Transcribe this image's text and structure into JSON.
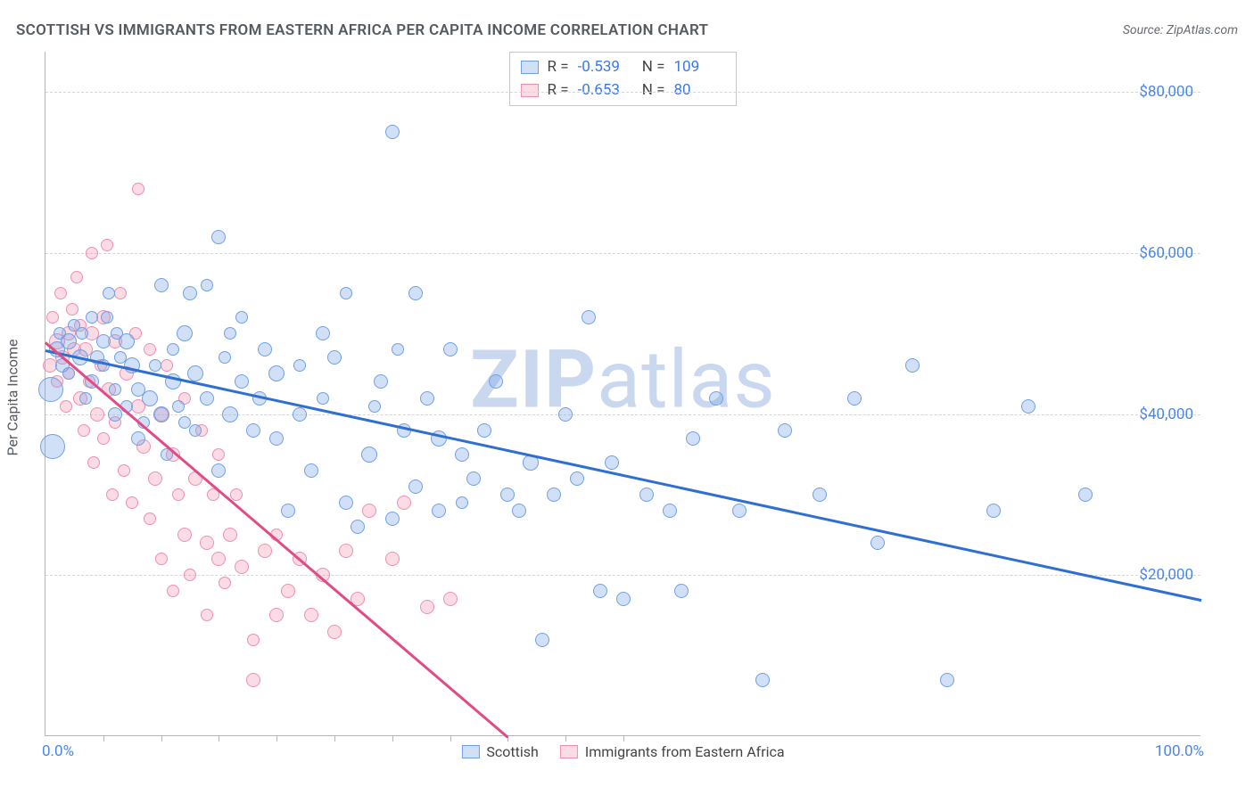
{
  "title": "SCOTTISH VS IMMIGRANTS FROM EASTERN AFRICA PER CAPITA INCOME CORRELATION CHART",
  "source_label": "Source: ",
  "source_name": "ZipAtlas.com",
  "watermark_a": "ZIP",
  "watermark_b": "atlas",
  "chart": {
    "type": "scatter",
    "ylabel": "Per Capita Income",
    "xlim": [
      0,
      100
    ],
    "ylim": [
      0,
      85000
    ],
    "xlim_labels": [
      "0.0%",
      "100.0%"
    ],
    "ytick_values": [
      20000,
      40000,
      60000,
      80000
    ],
    "ytick_labels": [
      "$20,000",
      "$40,000",
      "$60,000",
      "$80,000"
    ],
    "xtick_values": [
      5,
      10,
      15,
      20,
      25,
      30,
      35,
      40,
      45,
      50
    ],
    "background_color": "#ffffff",
    "grid_color": "#d6d6d6",
    "axis_color": "#b5b5b5",
    "tick_label_color": "#4a86e8",
    "series": [
      {
        "name": "Scottish",
        "fill": "rgba(124,166,232,0.35)",
        "stroke": "#6fa0e6",
        "trend_color": "#2f6fd0",
        "R": "-0.539",
        "N": "109",
        "trend": {
          "x1": 0,
          "y1": 48000,
          "x2": 100,
          "y2": 17000
        },
        "points": [
          {
            "x": 0.5,
            "y": 43000,
            "r": 14
          },
          {
            "x": 0.6,
            "y": 36000,
            "r": 14
          },
          {
            "x": 1,
            "y": 48000,
            "r": 9
          },
          {
            "x": 1.2,
            "y": 50000,
            "r": 7
          },
          {
            "x": 1.5,
            "y": 46000,
            "r": 8
          },
          {
            "x": 2,
            "y": 49000,
            "r": 9
          },
          {
            "x": 2,
            "y": 45000,
            "r": 7
          },
          {
            "x": 2.5,
            "y": 51000,
            "r": 7
          },
          {
            "x": 3,
            "y": 47000,
            "r": 9
          },
          {
            "x": 3.2,
            "y": 50000,
            "r": 7
          },
          {
            "x": 3.5,
            "y": 42000,
            "r": 7
          },
          {
            "x": 4,
            "y": 44000,
            "r": 8
          },
          {
            "x": 4,
            "y": 52000,
            "r": 7
          },
          {
            "x": 4.5,
            "y": 47000,
            "r": 8
          },
          {
            "x": 5,
            "y": 49000,
            "r": 8
          },
          {
            "x": 5,
            "y": 46000,
            "r": 7
          },
          {
            "x": 5.3,
            "y": 52000,
            "r": 7
          },
          {
            "x": 5.5,
            "y": 55000,
            "r": 7
          },
          {
            "x": 6,
            "y": 40000,
            "r": 8
          },
          {
            "x": 6,
            "y": 43000,
            "r": 7
          },
          {
            "x": 6.2,
            "y": 50000,
            "r": 7
          },
          {
            "x": 6.5,
            "y": 47000,
            "r": 7
          },
          {
            "x": 7,
            "y": 49000,
            "r": 9
          },
          {
            "x": 7,
            "y": 41000,
            "r": 7
          },
          {
            "x": 7.5,
            "y": 46000,
            "r": 9
          },
          {
            "x": 8,
            "y": 37000,
            "r": 8
          },
          {
            "x": 8,
            "y": 43000,
            "r": 8
          },
          {
            "x": 8.5,
            "y": 39000,
            "r": 7
          },
          {
            "x": 9,
            "y": 42000,
            "r": 9
          },
          {
            "x": 9.5,
            "y": 46000,
            "r": 7
          },
          {
            "x": 10,
            "y": 40000,
            "r": 9
          },
          {
            "x": 10,
            "y": 56000,
            "r": 8
          },
          {
            "x": 10.5,
            "y": 35000,
            "r": 7
          },
          {
            "x": 11,
            "y": 44000,
            "r": 9
          },
          {
            "x": 11,
            "y": 48000,
            "r": 7
          },
          {
            "x": 11.5,
            "y": 41000,
            "r": 7
          },
          {
            "x": 12,
            "y": 50000,
            "r": 9
          },
          {
            "x": 12,
            "y": 39000,
            "r": 7
          },
          {
            "x": 12.5,
            "y": 55000,
            "r": 8
          },
          {
            "x": 13,
            "y": 45000,
            "r": 9
          },
          {
            "x": 13,
            "y": 38000,
            "r": 7
          },
          {
            "x": 14,
            "y": 56000,
            "r": 7
          },
          {
            "x": 14,
            "y": 42000,
            "r": 8
          },
          {
            "x": 15,
            "y": 62000,
            "r": 8
          },
          {
            "x": 15,
            "y": 33000,
            "r": 8
          },
          {
            "x": 15.5,
            "y": 47000,
            "r": 7
          },
          {
            "x": 16,
            "y": 40000,
            "r": 9
          },
          {
            "x": 16,
            "y": 50000,
            "r": 7
          },
          {
            "x": 17,
            "y": 44000,
            "r": 8
          },
          {
            "x": 17,
            "y": 52000,
            "r": 7
          },
          {
            "x": 18,
            "y": 38000,
            "r": 8
          },
          {
            "x": 18.5,
            "y": 42000,
            "r": 8
          },
          {
            "x": 19,
            "y": 48000,
            "r": 8
          },
          {
            "x": 20,
            "y": 37000,
            "r": 8
          },
          {
            "x": 20,
            "y": 45000,
            "r": 9
          },
          {
            "x": 21,
            "y": 28000,
            "r": 8
          },
          {
            "x": 22,
            "y": 40000,
            "r": 8
          },
          {
            "x": 22,
            "y": 46000,
            "r": 7
          },
          {
            "x": 23,
            "y": 33000,
            "r": 8
          },
          {
            "x": 24,
            "y": 50000,
            "r": 8
          },
          {
            "x": 24,
            "y": 42000,
            "r": 7
          },
          {
            "x": 25,
            "y": 47000,
            "r": 8
          },
          {
            "x": 26,
            "y": 29000,
            "r": 8
          },
          {
            "x": 26,
            "y": 55000,
            "r": 7
          },
          {
            "x": 27,
            "y": 26000,
            "r": 8
          },
          {
            "x": 28,
            "y": 35000,
            "r": 9
          },
          {
            "x": 28.5,
            "y": 41000,
            "r": 7
          },
          {
            "x": 29,
            "y": 44000,
            "r": 8
          },
          {
            "x": 30,
            "y": 75000,
            "r": 8
          },
          {
            "x": 30,
            "y": 27000,
            "r": 8
          },
          {
            "x": 30.5,
            "y": 48000,
            "r": 7
          },
          {
            "x": 31,
            "y": 38000,
            "r": 8
          },
          {
            "x": 32,
            "y": 55000,
            "r": 8
          },
          {
            "x": 32,
            "y": 31000,
            "r": 8
          },
          {
            "x": 33,
            "y": 42000,
            "r": 8
          },
          {
            "x": 34,
            "y": 28000,
            "r": 8
          },
          {
            "x": 34,
            "y": 37000,
            "r": 9
          },
          {
            "x": 35,
            "y": 48000,
            "r": 8
          },
          {
            "x": 36,
            "y": 35000,
            "r": 8
          },
          {
            "x": 36,
            "y": 29000,
            "r": 7
          },
          {
            "x": 37,
            "y": 32000,
            "r": 8
          },
          {
            "x": 38,
            "y": 38000,
            "r": 8
          },
          {
            "x": 39,
            "y": 44000,
            "r": 8
          },
          {
            "x": 40,
            "y": 30000,
            "r": 8
          },
          {
            "x": 41,
            "y": 28000,
            "r": 8
          },
          {
            "x": 42,
            "y": 34000,
            "r": 9
          },
          {
            "x": 43,
            "y": 12000,
            "r": 8
          },
          {
            "x": 44,
            "y": 30000,
            "r": 8
          },
          {
            "x": 45,
            "y": 40000,
            "r": 8
          },
          {
            "x": 46,
            "y": 32000,
            "r": 8
          },
          {
            "x": 47,
            "y": 52000,
            "r": 8
          },
          {
            "x": 48,
            "y": 18000,
            "r": 8
          },
          {
            "x": 49,
            "y": 34000,
            "r": 8
          },
          {
            "x": 50,
            "y": 17000,
            "r": 8
          },
          {
            "x": 52,
            "y": 30000,
            "r": 8
          },
          {
            "x": 54,
            "y": 28000,
            "r": 8
          },
          {
            "x": 55,
            "y": 18000,
            "r": 8
          },
          {
            "x": 56,
            "y": 37000,
            "r": 8
          },
          {
            "x": 58,
            "y": 42000,
            "r": 8
          },
          {
            "x": 60,
            "y": 28000,
            "r": 8
          },
          {
            "x": 62,
            "y": 7000,
            "r": 8
          },
          {
            "x": 64,
            "y": 38000,
            "r": 8
          },
          {
            "x": 67,
            "y": 30000,
            "r": 8
          },
          {
            "x": 70,
            "y": 42000,
            "r": 8
          },
          {
            "x": 72,
            "y": 24000,
            "r": 8
          },
          {
            "x": 75,
            "y": 46000,
            "r": 8
          },
          {
            "x": 78,
            "y": 7000,
            "r": 8
          },
          {
            "x": 82,
            "y": 28000,
            "r": 8
          },
          {
            "x": 85,
            "y": 41000,
            "r": 8
          },
          {
            "x": 90,
            "y": 30000,
            "r": 8
          }
        ]
      },
      {
        "name": "Immigrants from Eastern Africa",
        "fill": "rgba(244,146,175,0.32)",
        "stroke": "#ef8fb0",
        "trend_color": "#e24b85",
        "R": "-0.653",
        "N": "80",
        "trend": {
          "x1": 0,
          "y1": 49000,
          "x2": 40,
          "y2": 0
        },
        "points": [
          {
            "x": 0.4,
            "y": 46000,
            "r": 8
          },
          {
            "x": 0.6,
            "y": 52000,
            "r": 7
          },
          {
            "x": 1,
            "y": 49000,
            "r": 9
          },
          {
            "x": 1,
            "y": 44000,
            "r": 7
          },
          {
            "x": 1.3,
            "y": 55000,
            "r": 7
          },
          {
            "x": 1.5,
            "y": 47000,
            "r": 8
          },
          {
            "x": 1.8,
            "y": 41000,
            "r": 7
          },
          {
            "x": 2,
            "y": 50000,
            "r": 8
          },
          {
            "x": 2,
            "y": 45000,
            "r": 7
          },
          {
            "x": 2.3,
            "y": 53000,
            "r": 7
          },
          {
            "x": 2.5,
            "y": 48000,
            "r": 8
          },
          {
            "x": 2.7,
            "y": 57000,
            "r": 7
          },
          {
            "x": 3,
            "y": 42000,
            "r": 8
          },
          {
            "x": 3,
            "y": 51000,
            "r": 7
          },
          {
            "x": 3.3,
            "y": 38000,
            "r": 7
          },
          {
            "x": 3.5,
            "y": 48000,
            "r": 8
          },
          {
            "x": 3.8,
            "y": 44000,
            "r": 7
          },
          {
            "x": 4,
            "y": 50000,
            "r": 8
          },
          {
            "x": 4,
            "y": 60000,
            "r": 7
          },
          {
            "x": 4.2,
            "y": 34000,
            "r": 7
          },
          {
            "x": 4.5,
            "y": 40000,
            "r": 8
          },
          {
            "x": 4.8,
            "y": 46000,
            "r": 7
          },
          {
            "x": 5,
            "y": 52000,
            "r": 8
          },
          {
            "x": 5,
            "y": 37000,
            "r": 7
          },
          {
            "x": 5.3,
            "y": 61000,
            "r": 7
          },
          {
            "x": 5.5,
            "y": 43000,
            "r": 8
          },
          {
            "x": 5.8,
            "y": 30000,
            "r": 7
          },
          {
            "x": 6,
            "y": 49000,
            "r": 8
          },
          {
            "x": 6,
            "y": 39000,
            "r": 7
          },
          {
            "x": 6.5,
            "y": 55000,
            "r": 7
          },
          {
            "x": 6.8,
            "y": 33000,
            "r": 7
          },
          {
            "x": 7,
            "y": 45000,
            "r": 8
          },
          {
            "x": 7.5,
            "y": 29000,
            "r": 7
          },
          {
            "x": 7.8,
            "y": 50000,
            "r": 7
          },
          {
            "x": 8,
            "y": 41000,
            "r": 8
          },
          {
            "x": 8,
            "y": 68000,
            "r": 7
          },
          {
            "x": 8.5,
            "y": 36000,
            "r": 8
          },
          {
            "x": 9,
            "y": 27000,
            "r": 7
          },
          {
            "x": 9,
            "y": 48000,
            "r": 7
          },
          {
            "x": 9.5,
            "y": 32000,
            "r": 8
          },
          {
            "x": 10,
            "y": 40000,
            "r": 8
          },
          {
            "x": 10,
            "y": 22000,
            "r": 7
          },
          {
            "x": 10.5,
            "y": 46000,
            "r": 7
          },
          {
            "x": 11,
            "y": 18000,
            "r": 7
          },
          {
            "x": 11,
            "y": 35000,
            "r": 8
          },
          {
            "x": 11.5,
            "y": 30000,
            "r": 7
          },
          {
            "x": 12,
            "y": 25000,
            "r": 8
          },
          {
            "x": 12,
            "y": 42000,
            "r": 7
          },
          {
            "x": 12.5,
            "y": 20000,
            "r": 7
          },
          {
            "x": 13,
            "y": 32000,
            "r": 8
          },
          {
            "x": 13.5,
            "y": 38000,
            "r": 7
          },
          {
            "x": 14,
            "y": 24000,
            "r": 8
          },
          {
            "x": 14,
            "y": 15000,
            "r": 7
          },
          {
            "x": 14.5,
            "y": 30000,
            "r": 7
          },
          {
            "x": 15,
            "y": 22000,
            "r": 8
          },
          {
            "x": 15,
            "y": 35000,
            "r": 7
          },
          {
            "x": 15.5,
            "y": 19000,
            "r": 7
          },
          {
            "x": 16,
            "y": 25000,
            "r": 8
          },
          {
            "x": 16.5,
            "y": 30000,
            "r": 7
          },
          {
            "x": 17,
            "y": 21000,
            "r": 8
          },
          {
            "x": 18,
            "y": 7000,
            "r": 8
          },
          {
            "x": 18,
            "y": 12000,
            "r": 7
          },
          {
            "x": 19,
            "y": 23000,
            "r": 8
          },
          {
            "x": 20,
            "y": 15000,
            "r": 8
          },
          {
            "x": 20,
            "y": 25000,
            "r": 7
          },
          {
            "x": 21,
            "y": 18000,
            "r": 8
          },
          {
            "x": 22,
            "y": 22000,
            "r": 8
          },
          {
            "x": 23,
            "y": 15000,
            "r": 8
          },
          {
            "x": 24,
            "y": 20000,
            "r": 8
          },
          {
            "x": 25,
            "y": 13000,
            "r": 8
          },
          {
            "x": 26,
            "y": 23000,
            "r": 8
          },
          {
            "x": 27,
            "y": 17000,
            "r": 8
          },
          {
            "x": 28,
            "y": 28000,
            "r": 8
          },
          {
            "x": 30,
            "y": 22000,
            "r": 8
          },
          {
            "x": 31,
            "y": 29000,
            "r": 8
          },
          {
            "x": 33,
            "y": 16000,
            "r": 8
          },
          {
            "x": 35,
            "y": 17000,
            "r": 8
          }
        ]
      }
    ],
    "legend_bottom": [
      "Scottish",
      "Immigrants from Eastern Africa"
    ]
  }
}
